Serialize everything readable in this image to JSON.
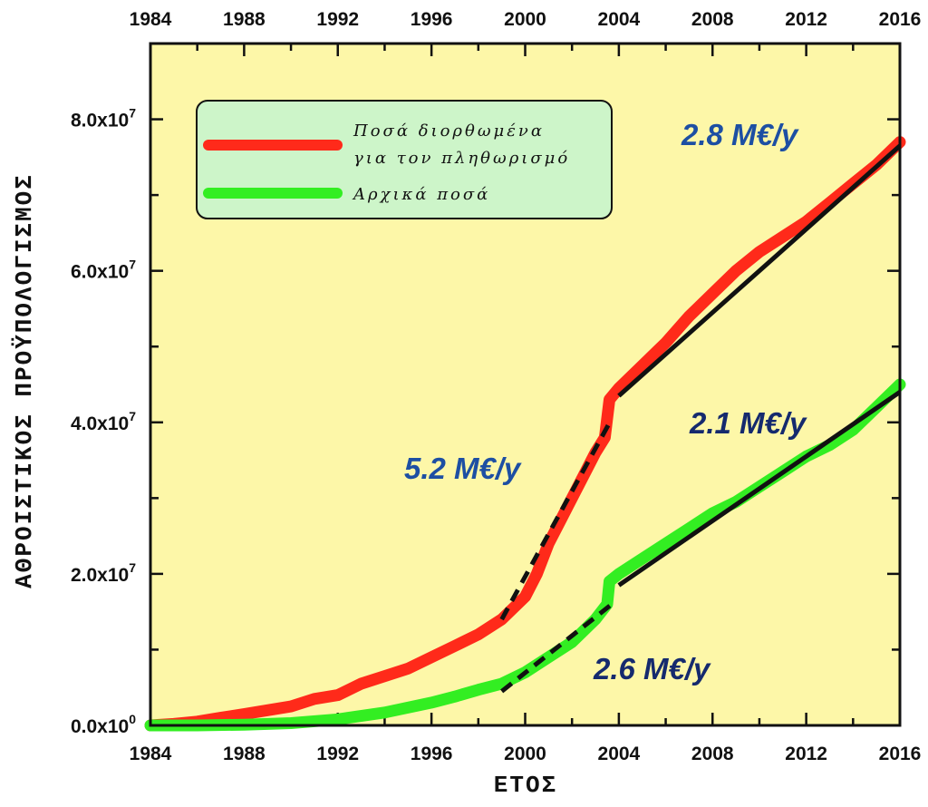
{
  "chart_data": {
    "type": "line",
    "xlabel": "ΕΤΟΣ",
    "ylabel": "ΑΘΡΟΙΣΤΙΚΟΣ ΠΡΟΫΠΟΛΟΓΙΣΜΟΣ",
    "xlim": [
      1984,
      2016
    ],
    "ylim": [
      0,
      90000000
    ],
    "x_ticks": [
      "1984",
      "1988",
      "1992",
      "1996",
      "2000",
      "2004",
      "2008",
      "2012",
      "2016"
    ],
    "y_ticks": [
      {
        "value": 0,
        "mant": "0.0x10",
        "exp": "0"
      },
      {
        "value": 20000000,
        "mant": "2.0x10",
        "exp": "7"
      },
      {
        "value": 40000000,
        "mant": "4.0x10",
        "exp": "7"
      },
      {
        "value": 60000000,
        "mant": "6.0x10",
        "exp": "7"
      },
      {
        "value": 80000000,
        "mant": "8.0x10",
        "exp": "7"
      }
    ],
    "legend": {
      "position": "top-left",
      "entries": [
        {
          "lines": [
            "Ποσά διορθωμένα",
            "για τον πληθωρισμό"
          ],
          "color": "#ff2a1a"
        },
        {
          "lines": [
            "Αρχικά ποσά"
          ],
          "color": "#33ee22"
        }
      ]
    },
    "series": [
      {
        "color": "#ff2a1a",
        "x": [
          1984,
          1985,
          1986,
          1987,
          1988,
          1989,
          1990,
          1991,
          1992,
          1993,
          1994,
          1995,
          1996,
          1997,
          1998,
          1999,
          2000,
          2000.5,
          2001,
          2001.5,
          2002,
          2002.5,
          2003,
          2003.4,
          2003.6,
          2004,
          2005,
          2006,
          2007,
          2008,
          2009,
          2010,
          2011,
          2012,
          2013,
          2014,
          2015,
          2016
        ],
        "y": [
          0,
          200000,
          500000,
          1000000,
          1500000,
          2000000,
          2500000,
          3500000,
          4000000,
          5500000,
          6500000,
          7500000,
          9000000,
          10500000,
          12000000,
          14000000,
          17000000,
          20000000,
          24000000,
          27000000,
          30000000,
          33000000,
          36000000,
          38000000,
          43000000,
          44500000,
          47500000,
          50500000,
          54000000,
          57000000,
          60000000,
          62500000,
          64500000,
          66500000,
          69000000,
          71500000,
          74000000,
          77000000
        ]
      },
      {
        "color": "#33ee22",
        "x": [
          1984,
          1986,
          1988,
          1990,
          1992,
          1994,
          1996,
          1997,
          1998,
          1999,
          2000,
          2001,
          2002,
          2003,
          2003.5,
          2003.6,
          2004,
          2005,
          2006,
          2007,
          2008,
          2009,
          2010,
          2011,
          2012,
          2013,
          2014,
          2015,
          2016
        ],
        "y": [
          0,
          0,
          100000,
          300000,
          800000,
          1700000,
          3000000,
          3800000,
          4700000,
          5500000,
          7000000,
          9000000,
          11000000,
          14000000,
          16000000,
          19000000,
          20000000,
          22000000,
          24000000,
          26000000,
          28000000,
          29500000,
          31500000,
          33500000,
          35500000,
          37000000,
          39000000,
          42000000,
          45000000
        ]
      }
    ],
    "fits": [
      {
        "x": [
          2004,
          2016
        ],
        "y": [
          43500000,
          76500000
        ],
        "style": "solid"
      },
      {
        "x": [
          1999,
          2003.7
        ],
        "y": [
          14000000,
          40500000
        ],
        "style": "dashed"
      },
      {
        "x": [
          2004,
          2016
        ],
        "y": [
          18500000,
          44000000
        ],
        "style": "solid"
      },
      {
        "x": [
          1999,
          2003.7
        ],
        "y": [
          4500000,
          16000000
        ],
        "style": "dashed"
      }
    ],
    "annotations": [
      {
        "text": "2.8 M€/y",
        "color": "#1d4fa3"
      },
      {
        "text": "5.2 M€/y",
        "color": "#1d4fa3"
      },
      {
        "text": "2.1 M€/y",
        "color": "#152a6e"
      },
      {
        "text": "2.6 M€/y",
        "color": "#152a6e"
      }
    ],
    "colors": {
      "plot_background": "#fdf7a8",
      "legend_background": "#cdf5c9",
      "fit_line": "#111111"
    }
  }
}
